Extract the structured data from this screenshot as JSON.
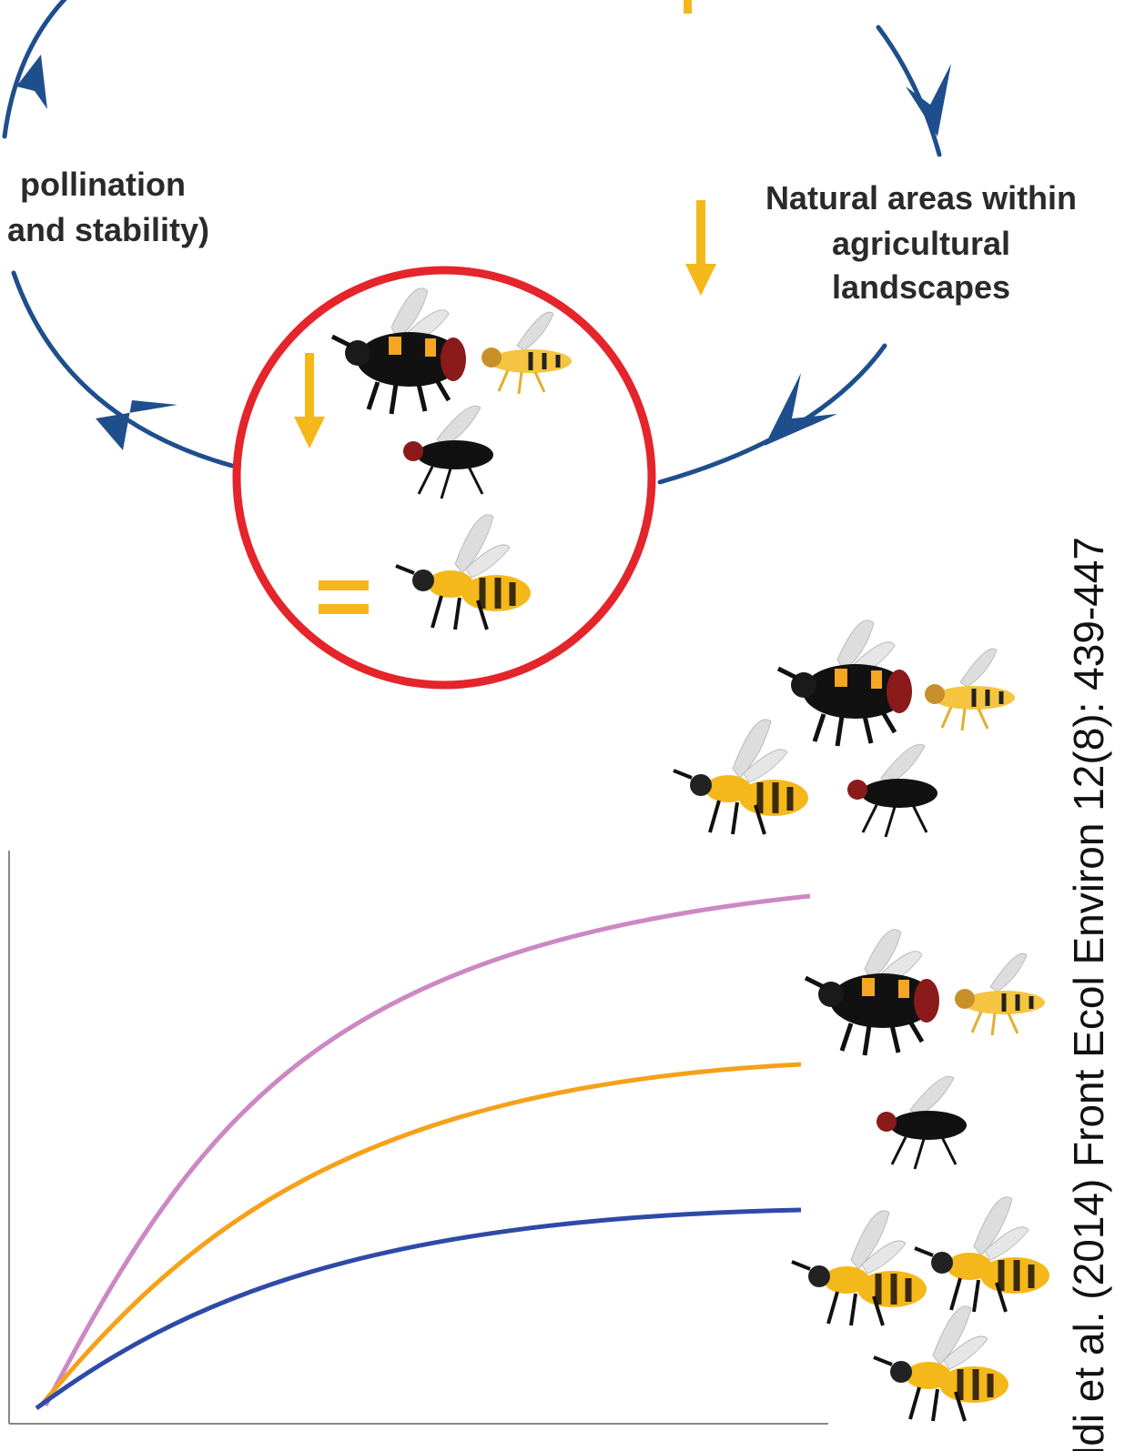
{
  "left_label": [
    "pollination",
    "and stability)"
  ],
  "natural_areas_label": [
    "Natural areas within",
    "agricultural",
    "landscapes"
  ],
  "citation": "ldi et al. (2014) Front Ecol Environ 12(8): 439-447"
}
